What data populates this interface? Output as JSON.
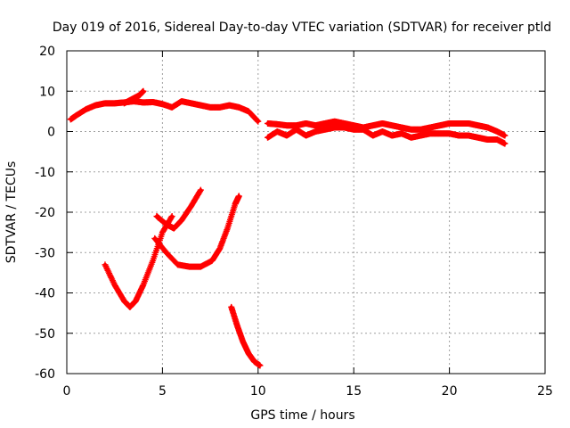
{
  "chart_data": {
    "type": "scatter",
    "title": "Day 019 of 2016, Sidereal Day-to-day VTEC variation (SDTVAR) for receiver ptld",
    "xlabel": "GPS time / hours",
    "ylabel": "SDTVAR / TECUs",
    "xlim": [
      0,
      25
    ],
    "ylim": [
      -60,
      20
    ],
    "xticks": [
      0,
      5,
      10,
      15,
      20,
      25
    ],
    "yticks": [
      20,
      10,
      0,
      -10,
      -20,
      -30,
      -40,
      -50,
      -60
    ],
    "grid": true,
    "marker": "+",
    "color": "#ff0000",
    "series": [
      {
        "name": "main-band-before-gap",
        "x": [
          0.2,
          0.5,
          1.0,
          1.5,
          2.0,
          2.5,
          3.0,
          3.5,
          4.0,
          4.5,
          5.0,
          5.5,
          6.0,
          6.5,
          7.0,
          7.5,
          8.0,
          8.5,
          9.0,
          9.5,
          10.0
        ],
        "y": [
          3,
          4,
          5.5,
          6.5,
          7,
          7,
          7.2,
          7.5,
          7.2,
          7.3,
          6.8,
          6,
          7.5,
          7,
          6.5,
          6,
          6,
          6.5,
          6,
          5,
          2.5
        ]
      },
      {
        "name": "spike-near-4h",
        "x": [
          3.0,
          3.4,
          3.8,
          4.0
        ],
        "y": [
          7,
          8,
          9,
          10
        ]
      },
      {
        "name": "main-band-after-gap-upper",
        "x": [
          10.5,
          11,
          11.5,
          12,
          12.5,
          13,
          13.5,
          14,
          14.5,
          15,
          15.5,
          16,
          16.5,
          17,
          17.5,
          18,
          18.5,
          19,
          19.5,
          20,
          20.5,
          21,
          21.5,
          22,
          22.5,
          22.9
        ],
        "y": [
          2,
          1.8,
          1.5,
          1.5,
          2,
          1.5,
          2,
          2.5,
          2,
          1.5,
          1,
          1.5,
          2,
          1.5,
          1,
          0.5,
          0.5,
          1,
          1.5,
          2,
          2,
          2,
          1.5,
          1,
          0,
          -1
        ]
      },
      {
        "name": "main-band-after-gap-lower",
        "x": [
          10.5,
          11,
          11.5,
          12,
          12.5,
          13,
          13.5,
          14,
          14.5,
          15,
          15.5,
          16,
          16.5,
          17,
          17.5,
          18,
          18.5,
          19,
          19.5,
          20,
          20.5,
          21,
          21.5,
          22,
          22.5,
          22.9
        ],
        "y": [
          -1.5,
          0,
          -1,
          0.5,
          -1,
          0,
          0.5,
          1,
          1,
          0.5,
          0.5,
          -1,
          0,
          -1,
          -0.5,
          -1.5,
          -1,
          -0.5,
          -0.5,
          -0.5,
          -1,
          -1,
          -1.5,
          -2,
          -2,
          -3
        ]
      },
      {
        "name": "dip-arc-2h-to-5.5h",
        "x": [
          2.0,
          2.5,
          3.0,
          3.3,
          3.6,
          4.0,
          4.5,
          5.0,
          5.5
        ],
        "y": [
          -33,
          -38,
          -42,
          -43.5,
          -42,
          -38,
          -32,
          -25,
          -21
        ]
      },
      {
        "name": "arc-4.7h-to-7h",
        "x": [
          4.7,
          5.2,
          5.6,
          6.0,
          6.5,
          7.0
        ],
        "y": [
          -21,
          -23,
          -24,
          -22,
          -18.5,
          -14.5
        ]
      },
      {
        "name": "arc-4.6h-to-9h",
        "x": [
          4.6,
          5.2,
          5.8,
          6.4,
          7.0,
          7.6,
          8.0,
          8.4,
          8.8,
          9.0
        ],
        "y": [
          -26.5,
          -30,
          -33,
          -33.5,
          -33.5,
          -32,
          -29,
          -24,
          -18,
          -16
        ]
      },
      {
        "name": "falling-trace-8.5h-to-10.1h",
        "x": [
          8.6,
          8.9,
          9.2,
          9.5,
          9.8,
          10.1
        ],
        "y": [
          -43.5,
          -48,
          -52,
          -55,
          -57,
          -58
        ]
      }
    ]
  }
}
